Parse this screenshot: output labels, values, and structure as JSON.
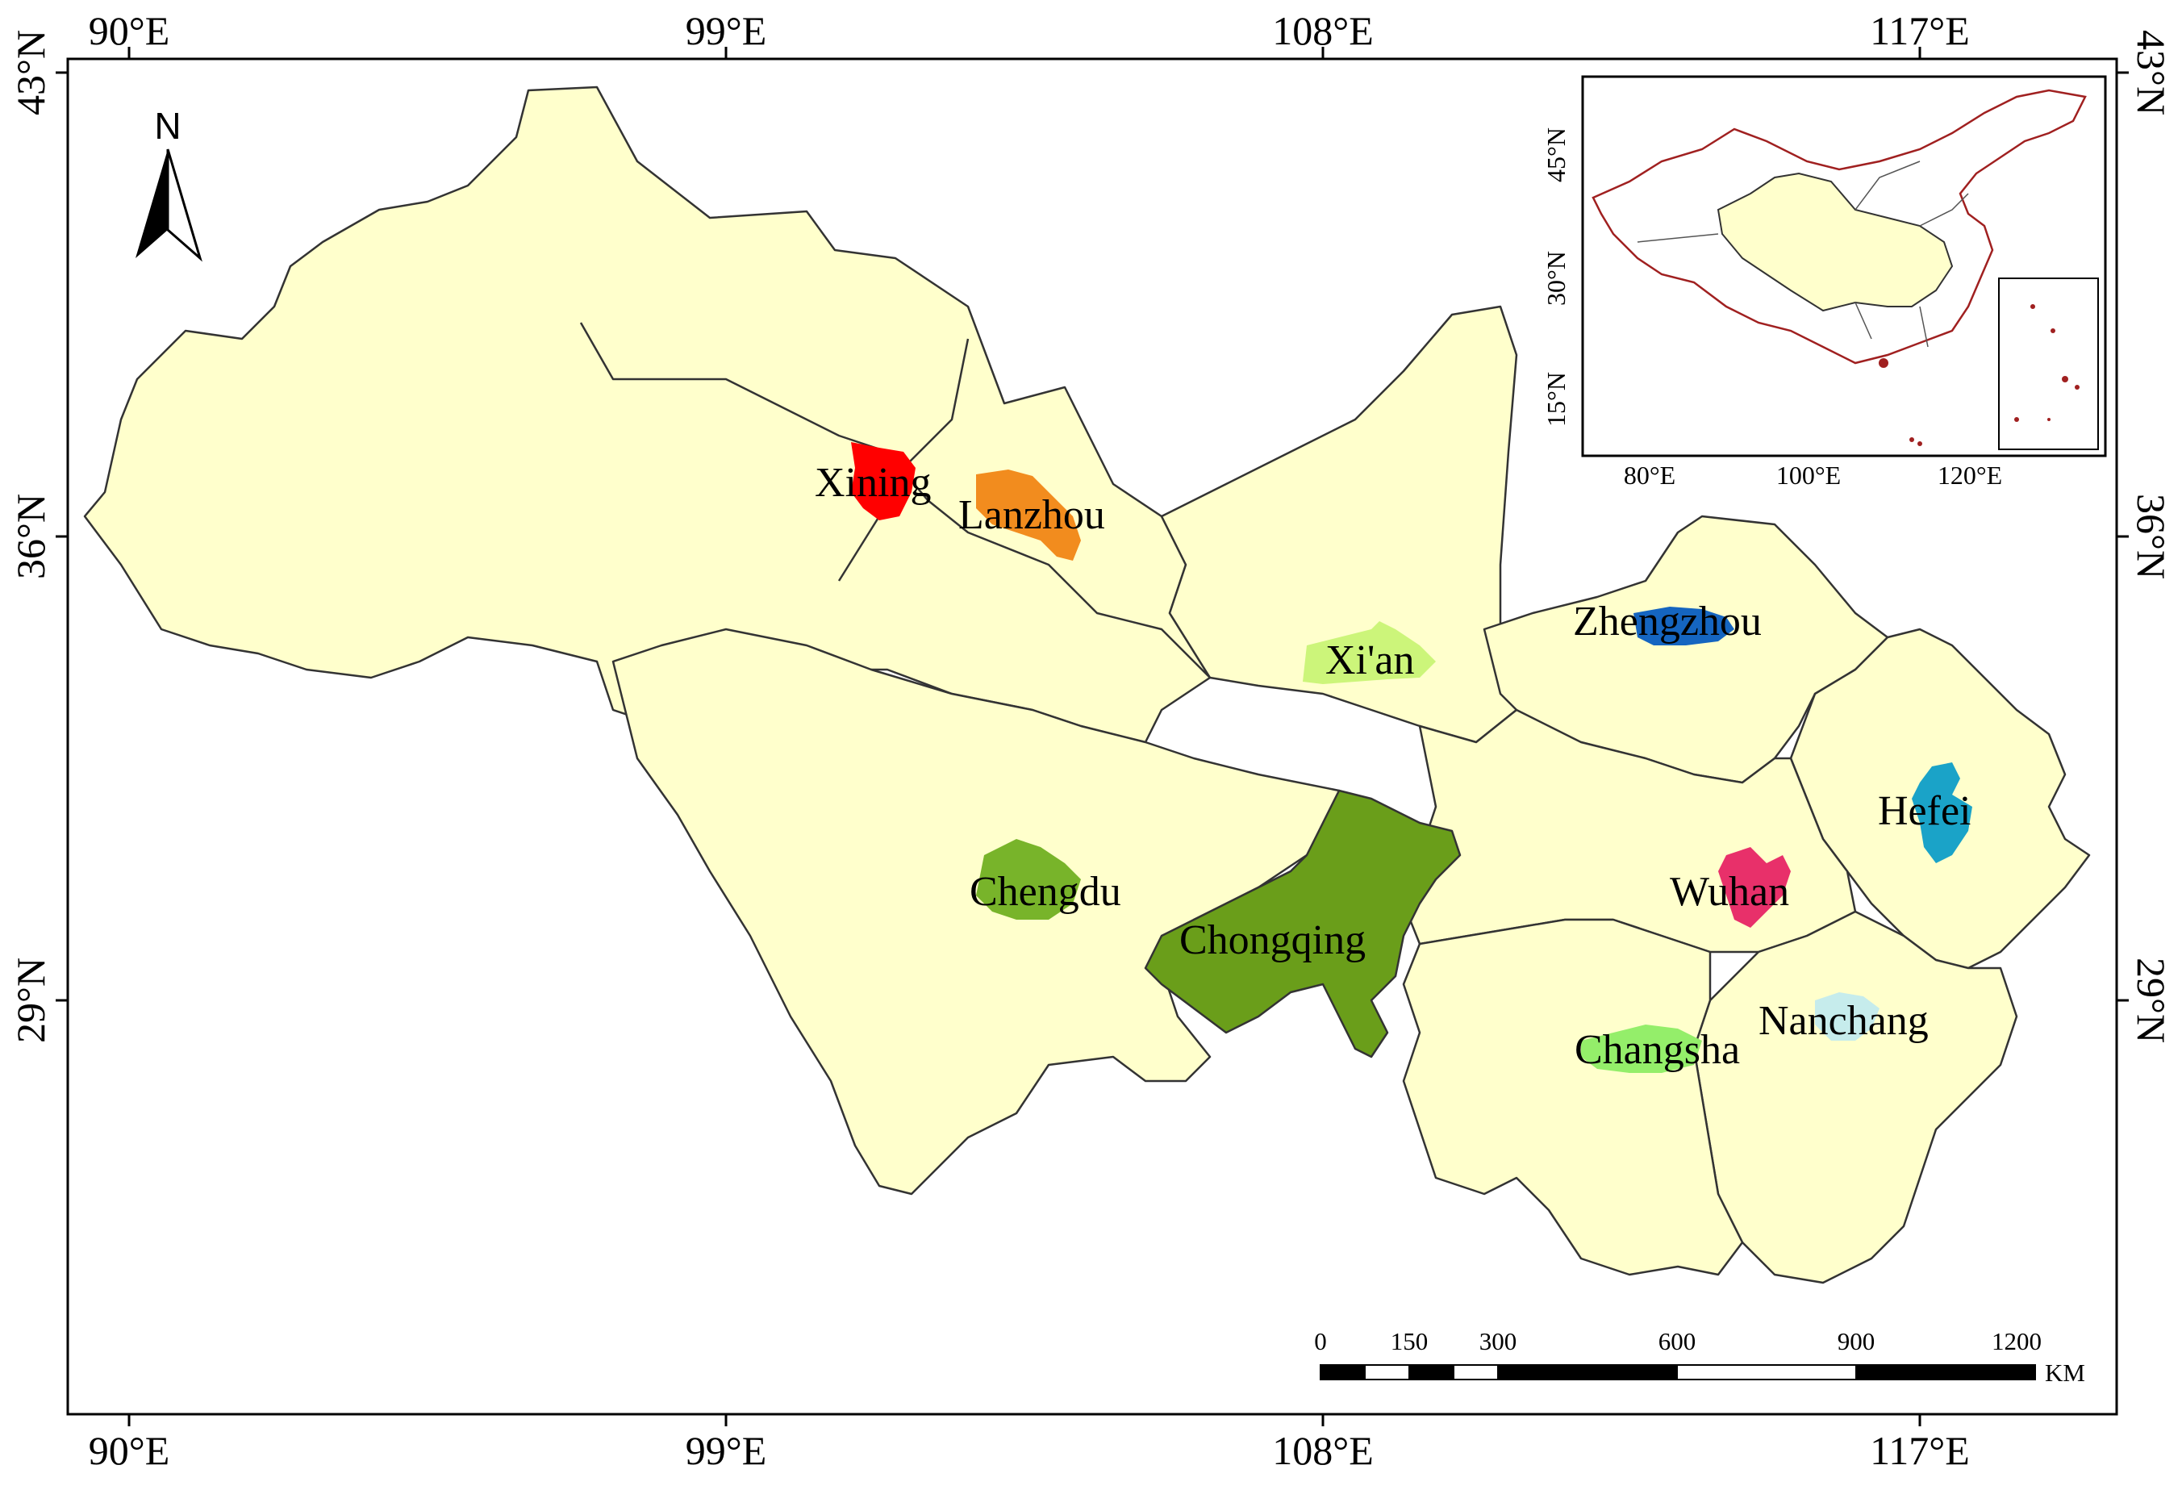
{
  "colors": {
    "land": "#FFFFCC",
    "border": "#333333",
    "frame": "#000000",
    "china_outline": "#A02020"
  },
  "axes": {
    "lon_top": [
      "90°E",
      "99°E",
      "108°E",
      "117°E"
    ],
    "lon_bottom": [
      "90°E",
      "99°E",
      "108°E",
      "117°E"
    ],
    "lat_left": [
      "43°N",
      "36°N",
      "29°N"
    ],
    "lat_right": [
      "43°N",
      "36°N",
      "29°N"
    ]
  },
  "north_arrow": {
    "label": "N",
    "icon": "north-arrow-icon"
  },
  "inset": {
    "lat_labels": [
      "45°N",
      "30°N",
      "15°N"
    ],
    "lon_labels": [
      "80°E",
      "100°E",
      "120°E"
    ]
  },
  "scale_bar": {
    "ticks": [
      "0",
      "150",
      "300",
      "600",
      "900",
      "1200"
    ],
    "unit": "KM"
  },
  "cities": [
    {
      "name": "Xining",
      "color": "#FF0000"
    },
    {
      "name": "Lanzhou",
      "color": "#F28C1E"
    },
    {
      "name": "Xi'an",
      "color": "#CCF57A"
    },
    {
      "name": "Zhengzhou",
      "color": "#1565C0"
    },
    {
      "name": "Hefei",
      "color": "#1AA3C8"
    },
    {
      "name": "Chengdu",
      "color": "#78B42A"
    },
    {
      "name": "Chongqing",
      "color": "#6A9E1A"
    },
    {
      "name": "Wuhan",
      "color": "#E8306A"
    },
    {
      "name": "Nanchang",
      "color": "#C6ECEC"
    },
    {
      "name": "Changsha",
      "color": "#94EE6A"
    }
  ]
}
